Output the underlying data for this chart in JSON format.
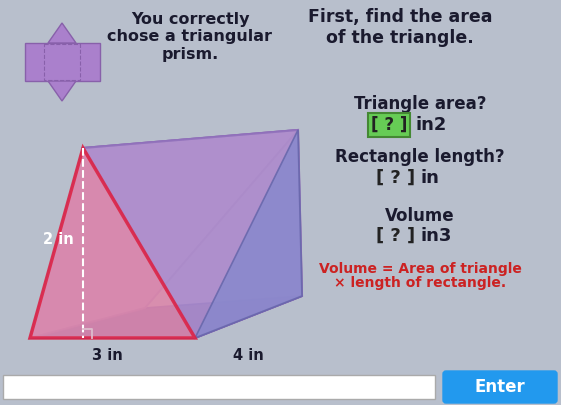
{
  "bg_color": "#b8bfcc",
  "title_left": "You correctly\nchose a triangular\nprism.",
  "title_right": "First, find the area\nof the triangle.",
  "triangle_area_label": "Triangle area?",
  "triangle_area_box": "[ ? ]",
  "triangle_area_unit": "in2",
  "rect_length_label": "Rectangle length?",
  "rect_length_box": "[ ? ]",
  "rect_length_unit": "in",
  "volume_label": "Volume",
  "volume_box": "[ ? ]",
  "volume_unit": "in3",
  "formula_line1": "Volume = Area of triangle",
  "formula_line2": "× length of rectangle.",
  "formula_color": "#cc2222",
  "enter_btn_color": "#2299ee",
  "enter_btn_text": "Enter",
  "dim_2in": "2 in",
  "dim_3in": "3 in",
  "dim_4in": "4 in",
  "box_green_bg": "#66cc55",
  "box_green_border": "#448833",
  "box_gray_bg": "#cccccc",
  "box_gray_border": "#999999",
  "text_dark": "#1a1a2e",
  "text_mid": "#444466",
  "prism_pink_face": "#e090aa",
  "prism_pink_edge": "#dd2244",
  "prism_top_face": "#a090cc",
  "prism_top_edge": "#8878bb",
  "prism_right_face": "#9090cc",
  "prism_right_edge": "#8080bb",
  "prism_bottom_face": "#6060aa",
  "prism_bottom_edge": "#5050aa",
  "prism_left_face": "#cc88aa",
  "net_color": "#aa80cc",
  "net_edge": "#8860aa",
  "dashed_color": "#ffffff",
  "right_angle_color": "#ddbbcc"
}
